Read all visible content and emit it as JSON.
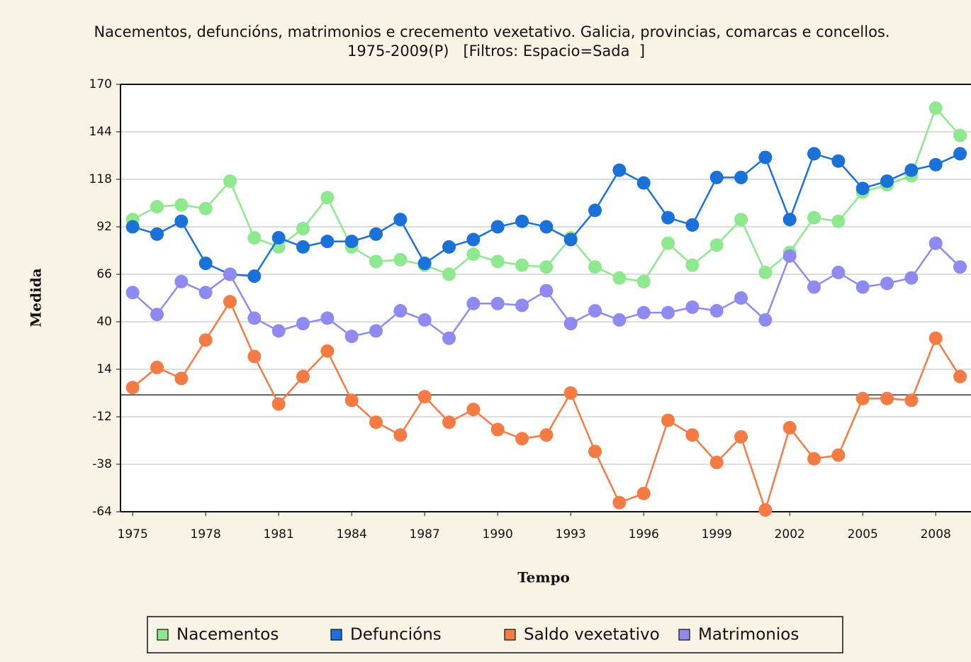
{
  "chart_data": {
    "type": "line",
    "title": "Nacementos, defuncións, matrimonios e crecemento vexetativo. Galicia, provincias, comarcas e concellos.",
    "subtitle": "1975-2009(P)   [Filtros: Espacio=Sada  ]",
    "x_label": "Tempo",
    "y_label": "Medida",
    "x": [
      1975,
      1976,
      1977,
      1978,
      1979,
      1980,
      1981,
      1982,
      1983,
      1984,
      1985,
      1986,
      1987,
      1988,
      1989,
      1990,
      1991,
      1992,
      1993,
      1994,
      1995,
      1996,
      1997,
      1998,
      1999,
      2000,
      2001,
      2002,
      2003,
      2004,
      2005,
      2006,
      2007,
      2008,
      2009
    ],
    "xlim": [
      1974.5,
      2009.45
    ],
    "xticks": [
      1975,
      1978,
      1981,
      1984,
      1987,
      1990,
      1993,
      1996,
      1999,
      2002,
      2005,
      2008
    ],
    "ylim": [
      -64,
      170
    ],
    "yticks": [
      -64,
      -38,
      -12,
      14,
      40,
      66,
      92,
      118,
      144,
      170
    ],
    "grid": true,
    "series": [
      {
        "name": "Nacementos",
        "color": "#8ee88e",
        "values": [
          96,
          103,
          104,
          102,
          117,
          86,
          81,
          91,
          108,
          81,
          73,
          74,
          71,
          66,
          77,
          73,
          71,
          70,
          86,
          70,
          64,
          62,
          83,
          71,
          82,
          96,
          67,
          78,
          97,
          95,
          111,
          115,
          120,
          157,
          142
        ]
      },
      {
        "name": "Defuncións",
        "color": "#1a72d8",
        "values": [
          92,
          88,
          95,
          72,
          66,
          65,
          86,
          81,
          84,
          84,
          88,
          96,
          72,
          81,
          85,
          92,
          95,
          92,
          85,
          101,
          123,
          116,
          97,
          93,
          119,
          119,
          130,
          96,
          132,
          128,
          113,
          117,
          123,
          126,
          132
        ]
      },
      {
        "name": "Saldo vexetativo",
        "color": "#f47b43",
        "values": [
          4,
          15,
          9,
          30,
          51,
          21,
          -5,
          10,
          24,
          -3,
          -15,
          -22,
          -1,
          -15,
          -8,
          -19,
          -24,
          -22,
          1,
          -31,
          -59,
          -54,
          -14,
          -22,
          -37,
          -23,
          -63,
          -18,
          -35,
          -33,
          -2,
          -2,
          -3,
          31,
          10
        ]
      },
      {
        "name": "Matrimonios",
        "color": "#8f8af0",
        "values": [
          56,
          44,
          62,
          56,
          66,
          42,
          35,
          39,
          42,
          32,
          35,
          46,
          41,
          31,
          50,
          50,
          49,
          57,
          39,
          46,
          41,
          45,
          45,
          48,
          46,
          53,
          41,
          76,
          59,
          67,
          59,
          61,
          64,
          83,
          70
        ]
      }
    ]
  }
}
